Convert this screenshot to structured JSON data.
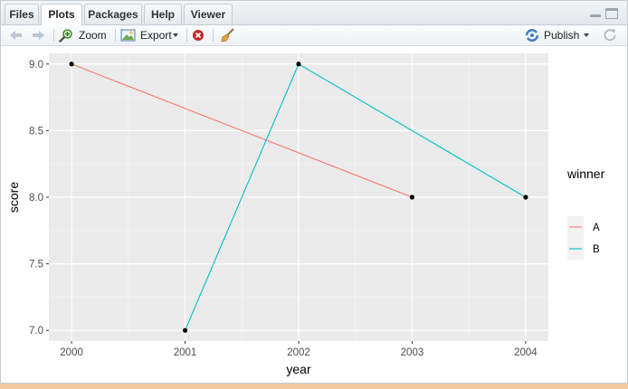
{
  "tabs": [
    {
      "label": "Files",
      "active": false
    },
    {
      "label": "Plots",
      "active": true
    },
    {
      "label": "Packages",
      "active": false
    },
    {
      "label": "Help",
      "active": false
    },
    {
      "label": "Viewer",
      "active": false
    }
  ],
  "toolbar": {
    "zoom_label": "Zoom",
    "export_label": "Export",
    "publish_label": "Publish"
  },
  "icons": {
    "back": "arrow-left-icon",
    "forward": "arrow-right-icon",
    "zoom": "magnifier-icon",
    "export": "image-export-icon",
    "remove": "remove-plot-icon",
    "clear": "broom-icon",
    "publish": "publish-icon",
    "refresh": "refresh-icon"
  },
  "chart_data": {
    "type": "line",
    "xlabel": "year",
    "ylabel": "score",
    "x_ticks": [
      "2000",
      "2001",
      "2002",
      "2003",
      "2004"
    ],
    "y_ticks": [
      "7.0",
      "7.5",
      "8.0",
      "8.5",
      "9.0"
    ],
    "xlim": [
      1999.8,
      2004.2
    ],
    "ylim": [
      6.92,
      9.08
    ],
    "legend_title": "winner",
    "legend_position": "right",
    "grid": true,
    "series": [
      {
        "name": "A",
        "color": "#F8766D",
        "points": [
          {
            "x": 2000,
            "y": 9.0
          },
          {
            "x": 2003,
            "y": 8.0
          }
        ]
      },
      {
        "name": "B",
        "color": "#00BFC4",
        "points": [
          {
            "x": 2001,
            "y": 7.0
          },
          {
            "x": 2002,
            "y": 9.0
          },
          {
            "x": 2004,
            "y": 8.0
          }
        ]
      }
    ],
    "point_color": "#000000"
  }
}
